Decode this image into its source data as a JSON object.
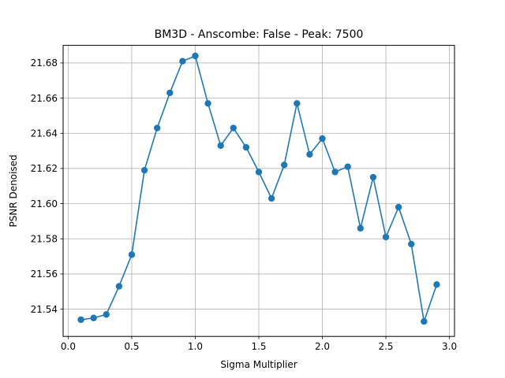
{
  "chart_data": {
    "type": "line",
    "title": "BM3D - Anscombe: False - Peak: 7500",
    "xlabel": "Sigma Multiplier",
    "ylabel": "PSNR Denoised",
    "xlim": [
      -0.04,
      3.04
    ],
    "ylim": [
      21.5245,
      21.69
    ],
    "xticks": [
      0.0,
      0.5,
      1.0,
      1.5,
      2.0,
      2.5,
      3.0
    ],
    "xtick_labels": [
      "0.0",
      "0.5",
      "1.0",
      "1.5",
      "2.0",
      "2.5",
      "3.0"
    ],
    "yticks": [
      21.54,
      21.56,
      21.58,
      21.6,
      21.62,
      21.64,
      21.66,
      21.68
    ],
    "ytick_labels": [
      "21.54",
      "21.56",
      "21.58",
      "21.60",
      "21.62",
      "21.64",
      "21.66",
      "21.68"
    ],
    "grid": true,
    "series": [
      {
        "color": "#1f77b4",
        "marker": "circle",
        "x": [
          0.1,
          0.2,
          0.3,
          0.4,
          0.5,
          0.6,
          0.7,
          0.8,
          0.9,
          1.0,
          1.1,
          1.2,
          1.3,
          1.4,
          1.5,
          1.6,
          1.7,
          1.8,
          1.9,
          2.0,
          2.1,
          2.2,
          2.3,
          2.4,
          2.5,
          2.6,
          2.7,
          2.8,
          2.9
        ],
        "y": [
          21.534,
          21.535,
          21.537,
          21.553,
          21.571,
          21.619,
          21.643,
          21.663,
          21.681,
          21.684,
          21.657,
          21.633,
          21.643,
          21.632,
          21.618,
          21.603,
          21.622,
          21.657,
          21.628,
          21.637,
          21.618,
          21.621,
          21.586,
          21.615,
          21.581,
          21.598,
          21.577,
          21.533,
          21.554
        ]
      }
    ]
  }
}
